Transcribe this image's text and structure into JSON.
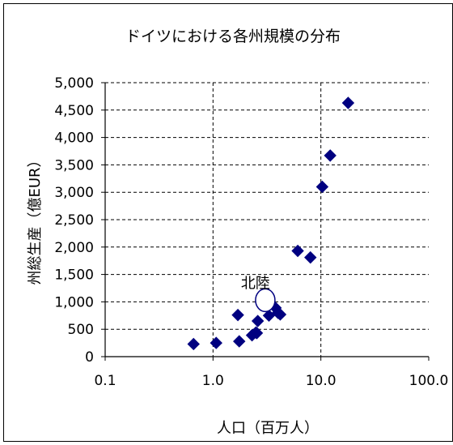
{
  "chart_data": {
    "type": "scatter",
    "title": "ドイツにおける各州規模の分布",
    "xlabel": "人口（百万人）",
    "ylabel": "州総生産（億EUR）",
    "xscale": "log",
    "xlim": [
      0.1,
      100.0
    ],
    "ylim": [
      0,
      5000
    ],
    "xticks": [
      "0.1",
      "1.0",
      "10.0",
      "100.0"
    ],
    "yticks": [
      "0",
      "500",
      "1,000",
      "1,500",
      "2,000",
      "2,500",
      "3,000",
      "3,500",
      "4,000",
      "4,500",
      "5,000"
    ],
    "grid": true,
    "series": [
      {
        "marker": "diamond",
        "color": "#000080",
        "points": [
          {
            "x": 0.66,
            "y": 230
          },
          {
            "x": 1.07,
            "y": 250
          },
          {
            "x": 1.7,
            "y": 760
          },
          {
            "x": 1.75,
            "y": 280
          },
          {
            "x": 2.3,
            "y": 390
          },
          {
            "x": 2.5,
            "y": 440
          },
          {
            "x": 2.55,
            "y": 430
          },
          {
            "x": 2.6,
            "y": 650
          },
          {
            "x": 3.3,
            "y": 750
          },
          {
            "x": 3.8,
            "y": 890
          },
          {
            "x": 4.0,
            "y": 800
          },
          {
            "x": 4.2,
            "y": 770
          },
          {
            "x": 6.1,
            "y": 1930
          },
          {
            "x": 8.0,
            "y": 1810
          },
          {
            "x": 10.3,
            "y": 3100
          },
          {
            "x": 12.2,
            "y": 3670
          },
          {
            "x": 17.9,
            "y": 4630
          }
        ]
      },
      {
        "name": "北陸",
        "marker": "circle",
        "color": "#ffffff",
        "points": [
          {
            "x": 3.05,
            "y": 1030
          }
        ]
      }
    ]
  }
}
